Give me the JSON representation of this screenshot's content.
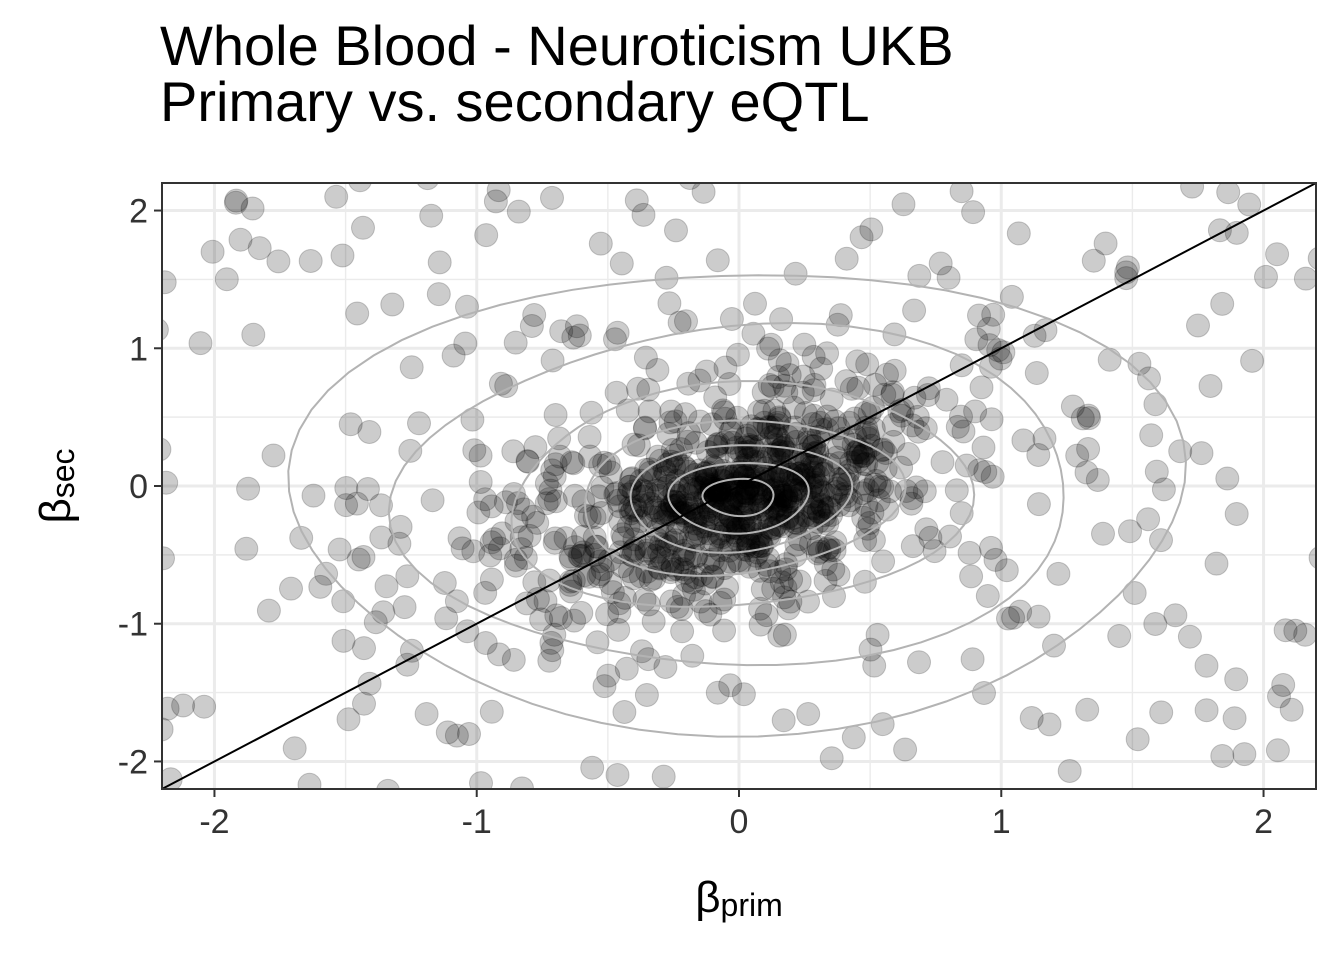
{
  "title": {
    "line1": "Whole Blood - Neuroticism UKB",
    "line2": "Primary vs. secondary eQTL"
  },
  "chart_data": {
    "type": "scatter",
    "xlabel": {
      "symbol": "β",
      "subscript": "prim"
    },
    "ylabel": {
      "symbol": "β",
      "subscript": "sec"
    },
    "xlim": [
      -2.2,
      2.2
    ],
    "ylim": [
      -2.2,
      2.2
    ],
    "xticks": [
      -2,
      -1,
      0,
      1,
      2
    ],
    "yticks": [
      -2,
      -1,
      0,
      1,
      2
    ],
    "xtick_labels": [
      "-2",
      "-1",
      "0",
      "1",
      "2"
    ],
    "ytick_labels": [
      "-2",
      "-1",
      "0",
      "1",
      "2"
    ],
    "grid": true,
    "reference_line": {
      "slope": 1,
      "intercept": 0,
      "color": "#000000"
    },
    "point_color": "#000000",
    "point_alpha": 0.2,
    "density_contours": true,
    "contour_color": "#b3b3b3",
    "n_points_approx": 1100
  }
}
